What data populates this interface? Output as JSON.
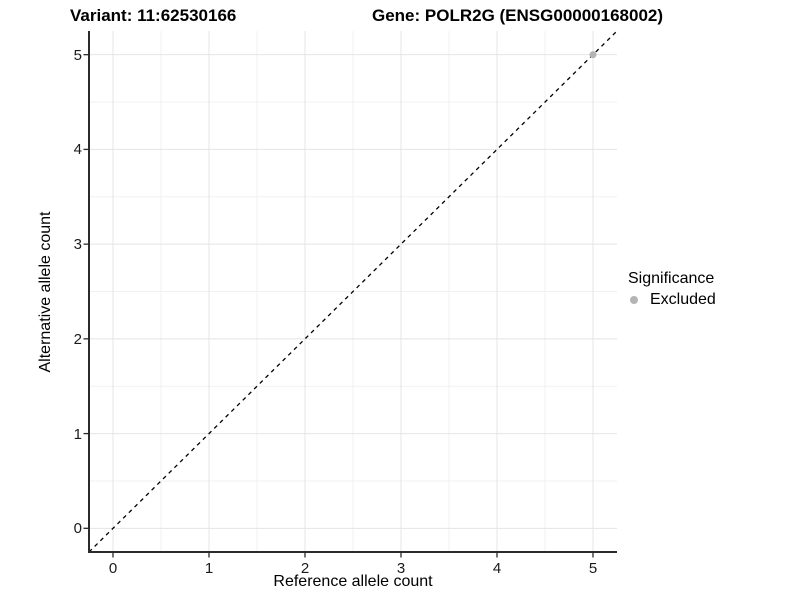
{
  "header": {
    "variant_title": "Variant: 11:62530166",
    "gene_title": "Gene: POLR2G (ENSG00000168002)"
  },
  "axes": {
    "x": {
      "label": "Reference allele count",
      "ticks": [
        "0",
        "1",
        "2",
        "3",
        "4",
        "5"
      ]
    },
    "y": {
      "label": "Alternative allele count",
      "ticks": [
        "0",
        "1",
        "2",
        "3",
        "4",
        "5"
      ]
    }
  },
  "legend": {
    "title": "Significance",
    "items": [
      {
        "label": "Excluded",
        "color": "#b4b4b4"
      }
    ]
  },
  "colors": {
    "grid_major": "#e4e4e4",
    "grid_minor": "#f1f1f1",
    "axis_line": "#2b2b2b",
    "reference_line": "#000000",
    "excluded_point": "#b4b4b4"
  },
  "chart_data": {
    "type": "scatter",
    "title": "Variant: 11:62530166   Gene: POLR2G (ENSG00000168002)",
    "xlabel": "Reference allele count",
    "ylabel": "Alternative allele count",
    "xlim": [
      -0.25,
      5.25
    ],
    "ylim": [
      -0.25,
      5.25
    ],
    "xticks": [
      0,
      1,
      2,
      3,
      4,
      5
    ],
    "yticks": [
      0,
      1,
      2,
      3,
      4,
      5
    ],
    "minor_ticks_x": [
      0.5,
      1.5,
      2.5,
      3.5,
      4.5
    ],
    "minor_ticks_y": [
      0.5,
      1.5,
      2.5,
      3.5,
      4.5
    ],
    "grid": "major+minor",
    "legend_position": "right",
    "series": [
      {
        "name": "Excluded",
        "color": "#b4b4b4",
        "points": [
          {
            "x": 5,
            "y": 5
          }
        ]
      }
    ],
    "reference_line": {
      "type": "identity",
      "style": "dashed",
      "from": [
        -0.25,
        -0.25
      ],
      "to": [
        5.25,
        5.25
      ]
    }
  }
}
